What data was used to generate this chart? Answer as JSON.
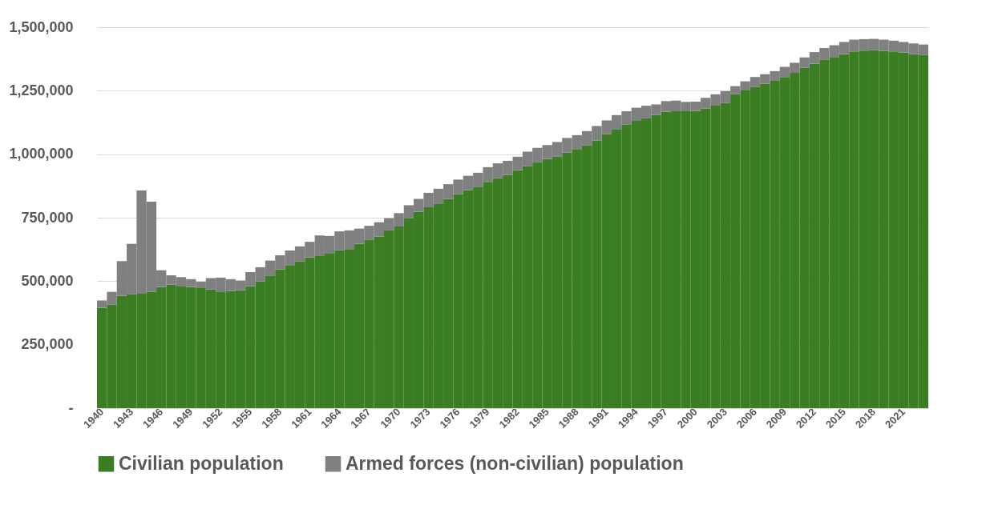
{
  "chart_data": {
    "type": "bar",
    "stacked": true,
    "categories": [
      "1940",
      null,
      null,
      "1943",
      null,
      null,
      "1946",
      null,
      null,
      "1949",
      null,
      null,
      "1952",
      null,
      null,
      "1955",
      null,
      null,
      "1958",
      null,
      null,
      "1961",
      null,
      null,
      "1964",
      null,
      null,
      "1967",
      null,
      null,
      "1970",
      null,
      null,
      "1973",
      null,
      null,
      "1976",
      null,
      null,
      "1979",
      null,
      null,
      "1982",
      null,
      null,
      "1985",
      null,
      null,
      "1988",
      null,
      null,
      "1991",
      null,
      null,
      "1994",
      null,
      null,
      "1997",
      null,
      null,
      "2000",
      null,
      null,
      "2003",
      null,
      null,
      "2006",
      null,
      null,
      "2009",
      null,
      null,
      "2012",
      null,
      null,
      "2015",
      null,
      null,
      "2018",
      null,
      null,
      "2021",
      null,
      null
    ],
    "series": [
      {
        "name": "Civilian population",
        "color": "#3a7d22",
        "values": [
          395000,
          407000,
          443000,
          448000,
          451000,
          458000,
          477000,
          486000,
          481000,
          477000,
          475000,
          468000,
          459000,
          461000,
          464000,
          480000,
          499000,
          522000,
          547000,
          563000,
          577000,
          594000,
          601000,
          608000,
          622000,
          626000,
          647000,
          662000,
          676000,
          700000,
          715000,
          747000,
          773000,
          791000,
          806000,
          824000,
          842000,
          858000,
          870000,
          891000,
          906000,
          918000,
          937000,
          952000,
          968000,
          981000,
          990000,
          1006000,
          1020000,
          1034000,
          1054000,
          1079000,
          1099000,
          1116000,
          1131000,
          1141000,
          1154000,
          1167000,
          1169000,
          1169000,
          1170000,
          1180000,
          1191000,
          1201000,
          1236000,
          1251000,
          1264000,
          1277000,
          1289000,
          1304000,
          1320000,
          1340000,
          1357000,
          1371000,
          1383000,
          1394000,
          1405000,
          1408000,
          1410000,
          1407000,
          1405000,
          1401000,
          1394000,
          1390000
        ]
      },
      {
        "name": "Armed forces (non-civilian) population",
        "color": "#808080",
        "values": [
          29000,
          51000,
          136000,
          199000,
          406000,
          355000,
          66000,
          37000,
          35000,
          31000,
          23000,
          44000,
          55000,
          47000,
          39000,
          56000,
          56000,
          59000,
          55000,
          58000,
          60000,
          61000,
          79000,
          70000,
          74000,
          74000,
          60000,
          56000,
          56000,
          48000,
          53000,
          52000,
          51000,
          57000,
          58000,
          58000,
          58000,
          57000,
          57000,
          58000,
          58000,
          56000,
          53000,
          58000,
          57000,
          55000,
          58000,
          58000,
          55000,
          57000,
          57000,
          54000,
          55000,
          53000,
          52000,
          50000,
          42000,
          42000,
          42000,
          37000,
          37000,
          42000,
          45000,
          47000,
          32000,
          36000,
          40000,
          38000,
          38000,
          40000,
          40000,
          41000,
          45000,
          47000,
          46000,
          48000,
          46000,
          45000,
          44000,
          44000,
          42000,
          41000,
          42000,
          42000
        ]
      }
    ],
    "ylim": [
      0,
      1500000
    ],
    "yticks": [
      {
        "value": 0,
        "label": "-"
      },
      {
        "value": 250000,
        "label": "250,000"
      },
      {
        "value": 500000,
        "label": "500,000"
      },
      {
        "value": 750000,
        "label": "750,000"
      },
      {
        "value": 1000000,
        "label": "1,000,000"
      },
      {
        "value": 1250000,
        "label": "1,250,000"
      },
      {
        "value": 1500000,
        "label": "1,500,000"
      }
    ],
    "grid": "y",
    "legend": "bottom"
  }
}
